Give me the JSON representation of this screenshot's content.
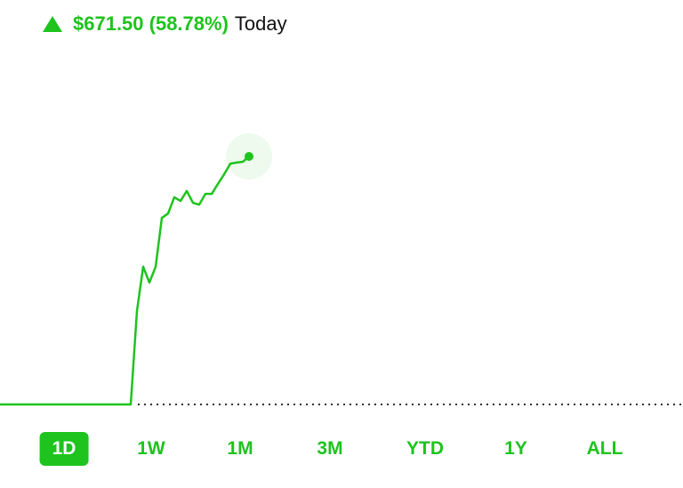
{
  "header": {
    "change": "$671.50 (58.78%)",
    "period": "Today"
  },
  "chart_data": {
    "type": "line",
    "color": "#1ec31e",
    "values": [
      0,
      0,
      0,
      0,
      0,
      0,
      0,
      0,
      0,
      0,
      0,
      0,
      0,
      0,
      0,
      0,
      0,
      0,
      0,
      0,
      0,
      0,
      253,
      373,
      330,
      373,
      505,
      517,
      561,
      551,
      578,
      546,
      541,
      570,
      570,
      597,
      623,
      652,
      655,
      657,
      671.5
    ]
  },
  "tabs": {
    "items": [
      "1D",
      "1W",
      "1M",
      "3M",
      "YTD",
      "1Y",
      "ALL"
    ],
    "selected": 0
  }
}
